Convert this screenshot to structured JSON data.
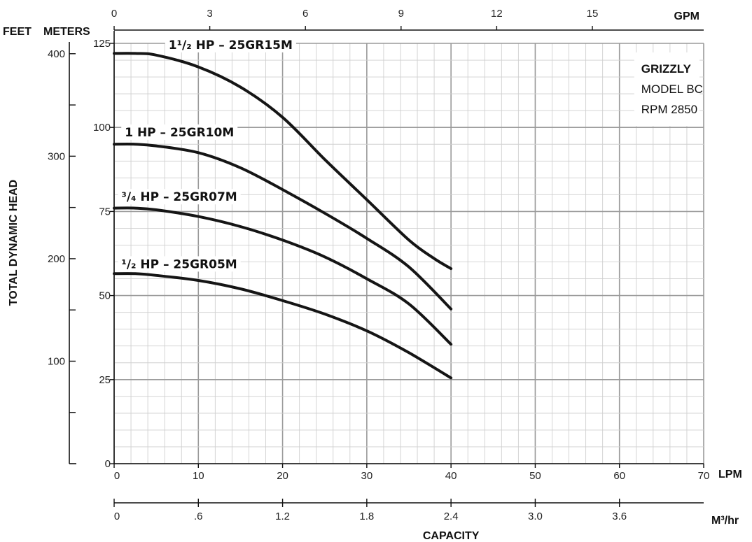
{
  "chart_data": {
    "type": "line",
    "x_unit": "LPM",
    "xlim": [
      0,
      70
    ],
    "x_ticks": [
      0,
      10,
      20,
      30,
      40,
      50,
      60,
      70
    ],
    "y_unit": "METERS",
    "ylim": [
      0,
      125
    ],
    "y_ticks": [
      0,
      25,
      50,
      75,
      100,
      125
    ],
    "ylabel": "TOTAL DYNAMIC HEAD",
    "xlabel": "CAPACITY",
    "grid": true,
    "secondary_axes": {
      "gpm": {
        "unit": "GPM",
        "ticks": [
          "0",
          "3",
          "6",
          "9",
          "12",
          "15"
        ],
        "values": [
          0,
          3,
          6,
          9,
          12,
          15
        ]
      },
      "feet": {
        "unit": "FEET",
        "ticks": [
          "100",
          "200",
          "300",
          "400"
        ],
        "values": [
          100,
          200,
          300,
          400
        ]
      },
      "m3hr": {
        "unit": "M³/hr",
        "ticks": [
          "0",
          ".6",
          "1.2",
          "1.8",
          "2.4",
          "3.0",
          "3.6"
        ],
        "values": [
          0,
          0.6,
          1.2,
          1.8,
          2.4,
          3.0,
          3.6
        ]
      }
    },
    "info_box": {
      "brand": "GRIZZLY",
      "model": "MODEL BC",
      "rpm": "RPM 2850"
    },
    "series": [
      {
        "name": "1¹/₂ HP – 25GR15M",
        "x": [
          0,
          2.5,
          5,
          10,
          15,
          20,
          25,
          30,
          35,
          38,
          40
        ],
        "y": [
          122,
          122,
          121.5,
          118,
          112,
          103,
          90.5,
          78.5,
          66.5,
          61,
          58
        ]
      },
      {
        "name": "1 HP – 25GR10M",
        "x": [
          0,
          2.5,
          5,
          10,
          15,
          20,
          25,
          30,
          35,
          40
        ],
        "y": [
          95,
          95,
          94.5,
          92.5,
          88,
          81.5,
          74.5,
          67,
          58.5,
          46
        ]
      },
      {
        "name": "³/₄ HP – 25GR07M",
        "x": [
          0,
          2.5,
          5,
          10,
          15,
          20,
          25,
          30,
          35,
          40
        ],
        "y": [
          76,
          76,
          75.5,
          73.5,
          70.5,
          66.5,
          61.5,
          55,
          47.5,
          35.5
        ]
      },
      {
        "name": "¹/₂ HP – 25GR05M",
        "x": [
          0,
          2.5,
          5,
          10,
          15,
          20,
          25,
          30,
          35,
          40
        ],
        "y": [
          56.5,
          56.5,
          56,
          54.5,
          52,
          48.5,
          44.5,
          39.5,
          33,
          25.5
        ]
      }
    ]
  }
}
